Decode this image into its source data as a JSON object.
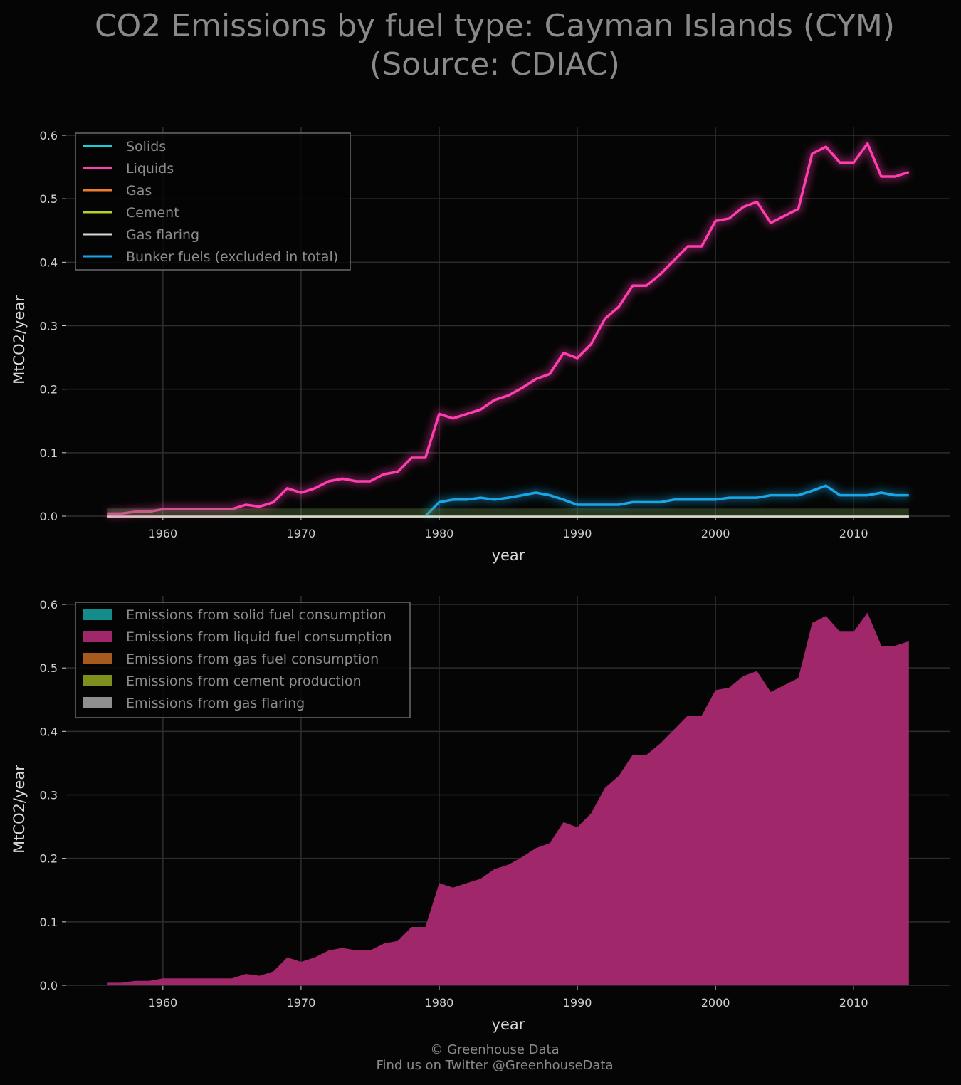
{
  "title": {
    "line1": "CO2 Emissions by fuel type: Cayman Islands (CYM)",
    "line2": "(Source: CDIAC)"
  },
  "footer": {
    "line1": "© Greenhouse Data",
    "line2": "Find us on Twitter @GreenhouseData"
  },
  "colors": {
    "solids": "#17d1d6",
    "liquids": "#ff3eb0",
    "gas": "#f07d2e",
    "cement": "#b6d12a",
    "gas_flaring": "#d8d8d8",
    "bunker": "#1aa6e6",
    "area_liquid": "#a0286a",
    "area_solid": "#148c8c",
    "area_gas": "#a65a1e",
    "area_cement": "#7f8f1e",
    "area_flaring": "#8f8f8f"
  },
  "chart_data": [
    {
      "type": "line",
      "xlabel": "year",
      "ylabel": "MtCO2/year",
      "xlim": [
        1953,
        2017
      ],
      "ylim": [
        0,
        0.6
      ],
      "xticks": [
        1960,
        1970,
        1980,
        1990,
        2000,
        2010
      ],
      "yticks": [
        "0.0",
        "0.1",
        "0.2",
        "0.3",
        "0.4",
        "0.5",
        "0.6"
      ],
      "grid": true,
      "legend_position": "top-left",
      "x": [
        1956,
        1957,
        1958,
        1959,
        1960,
        1961,
        1962,
        1963,
        1964,
        1965,
        1966,
        1967,
        1968,
        1969,
        1970,
        1971,
        1972,
        1973,
        1974,
        1975,
        1976,
        1977,
        1978,
        1979,
        1980,
        1981,
        1982,
        1983,
        1984,
        1985,
        1986,
        1987,
        1988,
        1989,
        1990,
        1991,
        1992,
        1993,
        1994,
        1995,
        1996,
        1997,
        1998,
        1999,
        2000,
        2001,
        2002,
        2003,
        2004,
        2005,
        2006,
        2007,
        2008,
        2009,
        2010,
        2011,
        2012,
        2013,
        2014
      ],
      "series": [
        {
          "name": "Solids",
          "color_key": "solids",
          "values": [
            0,
            0,
            0,
            0,
            0,
            0,
            0,
            0,
            0,
            0,
            0,
            0,
            0,
            0,
            0,
            0,
            0,
            0,
            0,
            0,
            0,
            0,
            0,
            0,
            0,
            0,
            0,
            0,
            0,
            0,
            0,
            0,
            0,
            0,
            0,
            0,
            0,
            0,
            0,
            0,
            0,
            0,
            0,
            0,
            0,
            0,
            0,
            0,
            0,
            0,
            0,
            0,
            0,
            0,
            0,
            0,
            0,
            0,
            0
          ]
        },
        {
          "name": "Liquids",
          "color_key": "liquids",
          "values": [
            0.004,
            0.004,
            0.007,
            0.007,
            0.011,
            0.011,
            0.011,
            0.011,
            0.011,
            0.011,
            0.018,
            0.015,
            0.022,
            0.044,
            0.037,
            0.044,
            0.055,
            0.059,
            0.055,
            0.055,
            0.066,
            0.07,
            0.092,
            0.092,
            0.161,
            0.154,
            0.161,
            0.168,
            0.183,
            0.19,
            0.202,
            0.216,
            0.224,
            0.257,
            0.249,
            0.271,
            0.311,
            0.33,
            0.363,
            0.363,
            0.381,
            0.403,
            0.425,
            0.425,
            0.465,
            0.469,
            0.487,
            0.495,
            0.462,
            0.473,
            0.484,
            0.571,
            0.582,
            0.557,
            0.557,
            0.587,
            0.535,
            0.535,
            0.542
          ]
        },
        {
          "name": "Gas",
          "color_key": "gas",
          "values": [
            0,
            0,
            0,
            0,
            0,
            0,
            0,
            0,
            0,
            0,
            0,
            0,
            0,
            0,
            0,
            0,
            0,
            0,
            0,
            0,
            0,
            0,
            0,
            0,
            0,
            0,
            0,
            0,
            0,
            0,
            0,
            0,
            0,
            0,
            0,
            0,
            0,
            0,
            0,
            0,
            0,
            0,
            0,
            0,
            0,
            0,
            0,
            0,
            0,
            0,
            0,
            0,
            0,
            0,
            0,
            0,
            0,
            0,
            0
          ]
        },
        {
          "name": "Cement",
          "color_key": "cement",
          "values": [
            0,
            0,
            0,
            0,
            0,
            0,
            0,
            0,
            0,
            0,
            0,
            0,
            0,
            0,
            0,
            0,
            0,
            0,
            0,
            0,
            0,
            0,
            0,
            0,
            0,
            0,
            0,
            0,
            0,
            0,
            0,
            0,
            0,
            0,
            0,
            0,
            0,
            0,
            0,
            0,
            0,
            0,
            0,
            0,
            0,
            0,
            0,
            0,
            0,
            0,
            0,
            0,
            0,
            0,
            0,
            0,
            0,
            0,
            0
          ]
        },
        {
          "name": "Gas flaring",
          "color_key": "gas_flaring",
          "values": [
            0,
            0,
            0,
            0,
            0,
            0,
            0,
            0,
            0,
            0,
            0,
            0,
            0,
            0,
            0,
            0,
            0,
            0,
            0,
            0,
            0,
            0,
            0,
            0,
            0,
            0,
            0,
            0,
            0,
            0,
            0,
            0,
            0,
            0,
            0,
            0,
            0,
            0,
            0,
            0,
            0,
            0,
            0,
            0,
            0,
            0,
            0,
            0,
            0,
            0,
            0,
            0,
            0,
            0,
            0,
            0,
            0,
            0,
            0
          ]
        },
        {
          "name": "Bunker fuels (excluded in total)",
          "color_key": "bunker",
          "values": [
            0,
            0,
            0,
            0,
            0,
            0,
            0,
            0,
            0,
            0,
            0,
            0,
            0,
            0,
            0,
            0,
            0,
            0,
            0,
            0,
            0,
            0,
            0,
            0,
            0.022,
            0.026,
            0.026,
            0.029,
            0.026,
            0.029,
            0.033,
            0.037,
            0.033,
            0.026,
            0.018,
            0.018,
            0.018,
            0.018,
            0.022,
            0.022,
            0.022,
            0.026,
            0.026,
            0.026,
            0.026,
            0.029,
            0.029,
            0.029,
            0.033,
            0.033,
            0.033,
            0.04,
            0.048,
            0.033,
            0.033,
            0.033,
            0.037,
            0.033,
            0.033
          ]
        }
      ]
    },
    {
      "type": "area",
      "stacked": true,
      "xlabel": "year",
      "ylabel": "MtCO2/year",
      "xlim": [
        1953,
        2017
      ],
      "ylim": [
        0,
        0.6
      ],
      "xticks": [
        1960,
        1970,
        1980,
        1990,
        2000,
        2010
      ],
      "yticks": [
        "0.0",
        "0.1",
        "0.2",
        "0.3",
        "0.4",
        "0.5",
        "0.6"
      ],
      "grid": true,
      "legend_position": "top-left",
      "series": [
        {
          "name": "Emissions from solid fuel consumption",
          "color_key": "area_solid",
          "source": 0
        },
        {
          "name": "Emissions from liquid fuel consumption",
          "color_key": "area_liquid",
          "source": 1
        },
        {
          "name": "Emissions from gas fuel consumption",
          "color_key": "area_gas",
          "source": 2
        },
        {
          "name": "Emissions from cement production",
          "color_key": "area_cement",
          "source": 3
        },
        {
          "name": "Emissions from gas flaring",
          "color_key": "area_flaring",
          "source": 4
        }
      ]
    }
  ]
}
